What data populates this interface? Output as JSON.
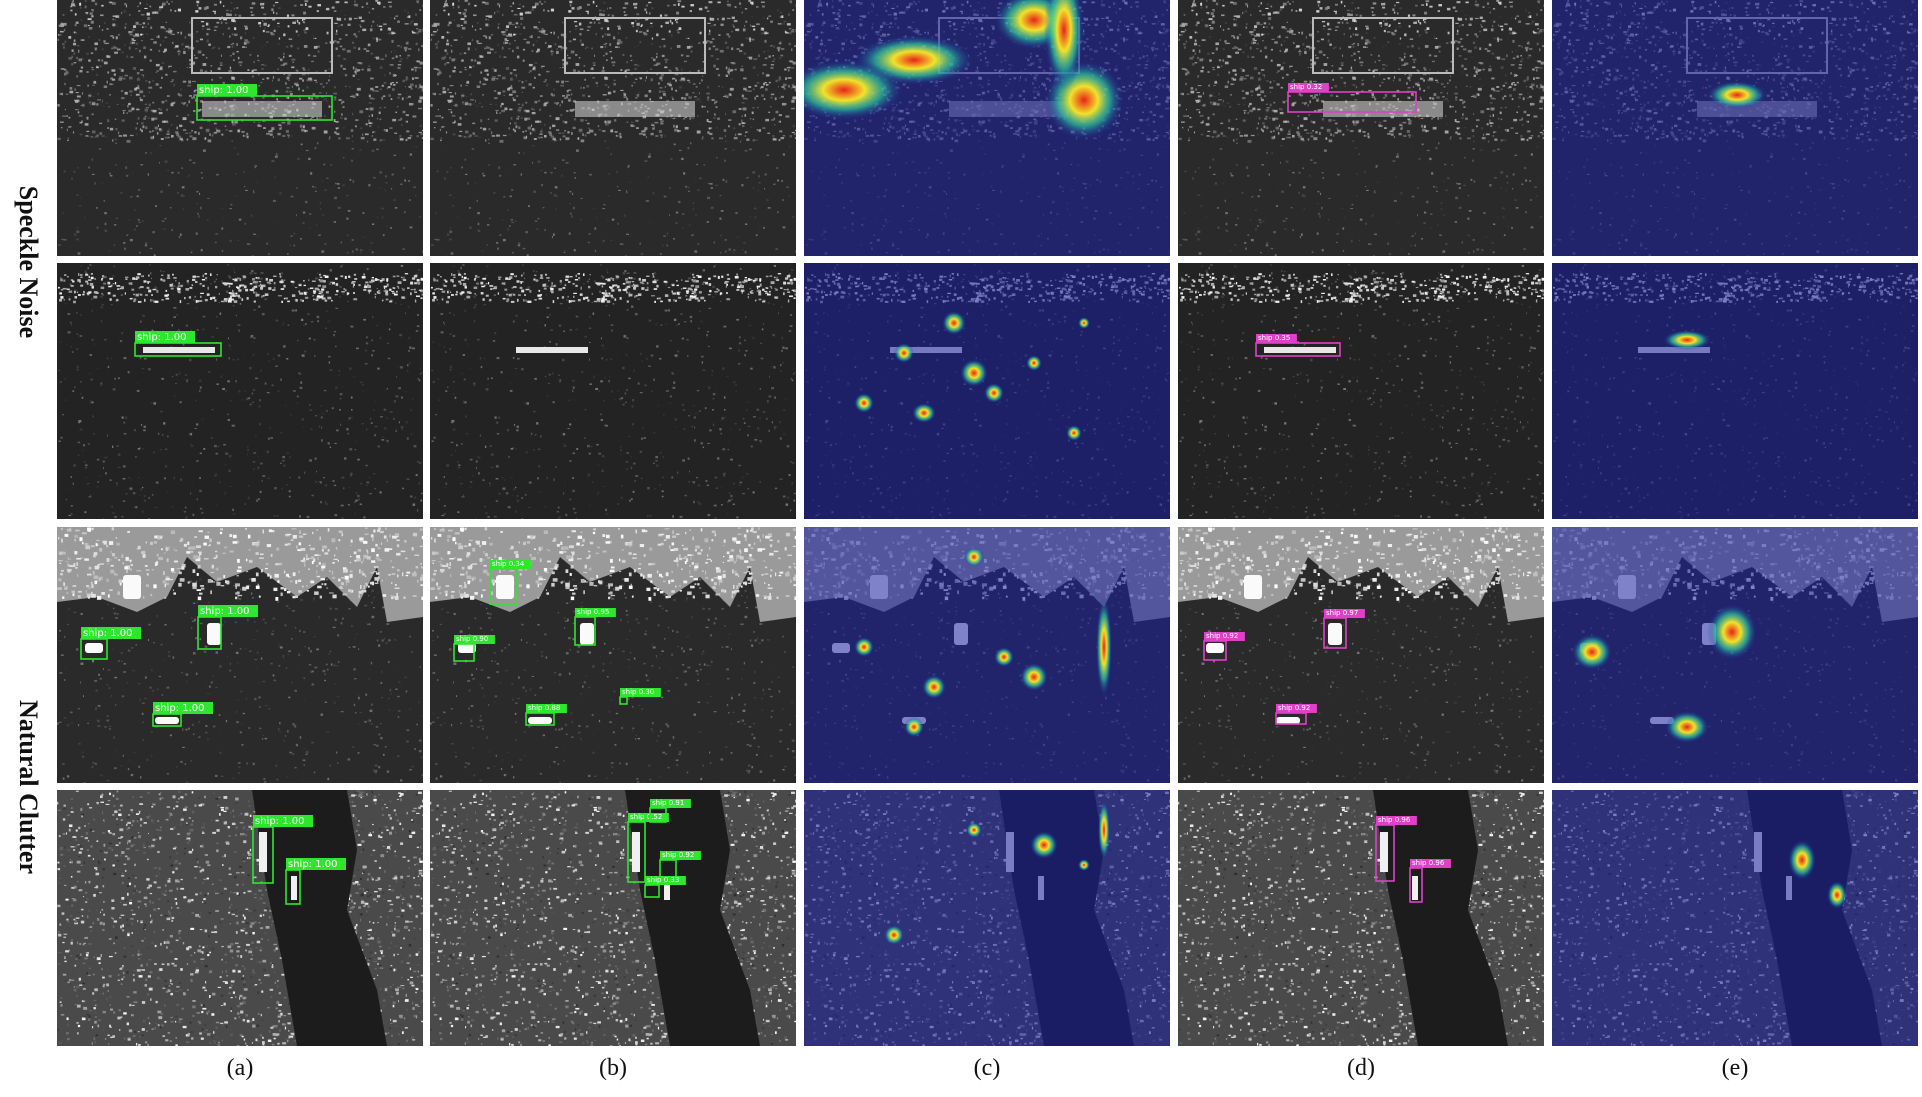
{
  "row_groups": [
    {
      "label": "Speckle Noise",
      "rows": [
        0,
        1
      ]
    },
    {
      "label": "Natural Clutter",
      "rows": [
        2,
        3
      ]
    }
  ],
  "columns": [
    "(a)",
    "(b)",
    "(c)",
    "(d)",
    "(e)"
  ],
  "colors": {
    "gt_box": "#2ee62e",
    "baseline_box": "#2ee62e",
    "ours_box": "#e040c8",
    "heat_low": "#1a1f9e",
    "heat_high": "#e8231a"
  },
  "rows": [
    {
      "scene": "harbor-speckle",
      "a": [
        {
          "label": "ship: 1.00"
        }
      ],
      "b": [],
      "d": [
        {
          "label": "ship 0.32"
        }
      ]
    },
    {
      "scene": "open-sea-speckle",
      "a": [
        {
          "label": "ship: 1.00"
        }
      ],
      "b": [],
      "d": [
        {
          "label": "ship 0.35"
        }
      ]
    },
    {
      "scene": "coast-clutter",
      "a": [
        {
          "label": "ship: 1.00"
        },
        {
          "label": "ship: 1.00"
        },
        {
          "label": "ship: 1.00"
        }
      ],
      "b": [
        {
          "label": "ship 0.34"
        },
        {
          "label": "ship 0.90"
        },
        {
          "label": "ship 0.95"
        },
        {
          "label": "ship 0.88"
        },
        {
          "label": "ship 0.30"
        }
      ],
      "d": [
        {
          "label": "ship 0.92"
        },
        {
          "label": "ship 0.97"
        },
        {
          "label": "ship 0.92"
        }
      ]
    },
    {
      "scene": "river-clutter",
      "a": [
        {
          "label": "ship: 1.00"
        },
        {
          "label": "ship: 1.00"
        }
      ],
      "b": [
        {
          "label": "ship 0.52"
        },
        {
          "label": "ship 0.91"
        },
        {
          "label": "ship 0.92"
        },
        {
          "label": "ship 0.33"
        }
      ],
      "d": [
        {
          "label": "ship 0.96"
        },
        {
          "label": "ship 0.96"
        }
      ]
    }
  ]
}
